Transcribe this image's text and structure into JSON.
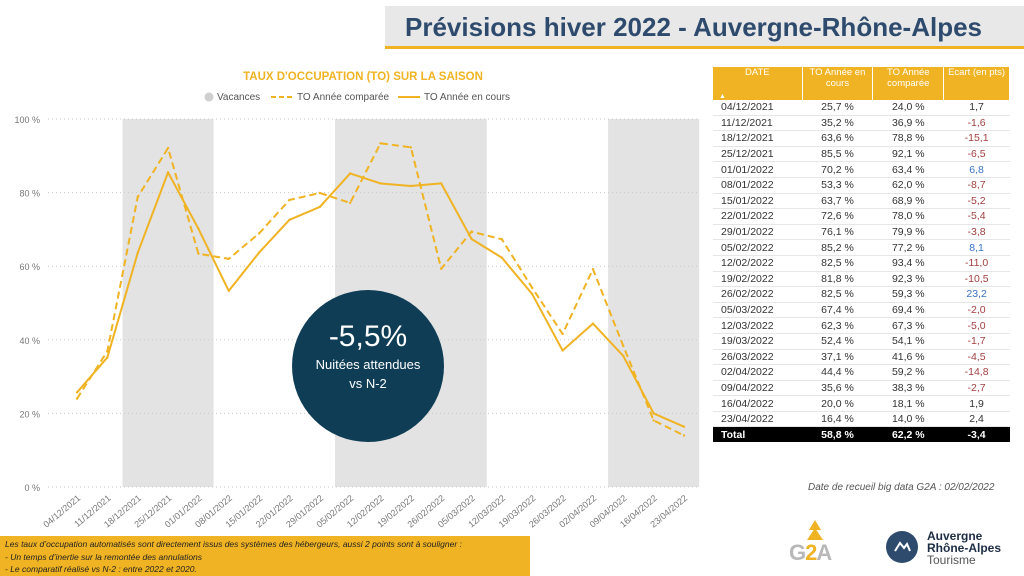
{
  "page_title": "Prévisions hiver 2022 - Auvergne-Rhône-Alpes",
  "chart_data": {
    "type": "line",
    "title": "TAUX D'OCCUPATION (TO) SUR LA SAISON",
    "categories": [
      "04/12/2021",
      "11/12/2021",
      "18/12/2021",
      "25/12/2021",
      "01/01/2022",
      "08/01/2022",
      "15/01/2022",
      "22/01/2022",
      "29/01/2022",
      "05/02/2022",
      "12/02/2022",
      "19/02/2022",
      "26/02/2022",
      "05/03/2022",
      "12/03/2022",
      "19/03/2022",
      "26/03/2022",
      "02/04/2022",
      "09/04/2022",
      "16/04/2022",
      "23/04/2022"
    ],
    "series": [
      {
        "name": "TO Année en cours",
        "style": "solid",
        "values": [
          25.7,
          35.2,
          63.6,
          85.5,
          70.2,
          53.3,
          63.7,
          72.6,
          76.1,
          85.2,
          82.5,
          81.8,
          82.5,
          67.4,
          62.3,
          52.4,
          37.1,
          44.4,
          35.6,
          20.0,
          16.4
        ]
      },
      {
        "name": "TO Année comparée",
        "style": "dashed",
        "values": [
          24.0,
          36.9,
          78.8,
          92.1,
          63.4,
          62.0,
          68.9,
          78.0,
          79.9,
          77.2,
          93.4,
          92.3,
          59.3,
          69.4,
          67.3,
          54.1,
          41.6,
          59.2,
          38.3,
          18.1,
          14.0
        ]
      }
    ],
    "legend": [
      "Vacances",
      "TO Année comparée",
      "TO Année en cours"
    ],
    "legend_position": "top",
    "vacation_periods": [
      [
        "18/12/2021",
        "01/01/2022"
      ],
      [
        "05/02/2022",
        "05/03/2022"
      ],
      [
        "09/04/2022",
        "23/04/2022"
      ]
    ],
    "y_ticks": [
      "0 %",
      "20 %",
      "40 %",
      "60 %",
      "80 %",
      "100 %"
    ],
    "ylim": [
      0,
      100
    ],
    "line_color": "#f0b323",
    "vacation_color": "#e3e3e3"
  },
  "callout": {
    "value": "-5,5%",
    "line1": "Nuitées attendues",
    "line2": "vs N-2"
  },
  "table": {
    "headers": [
      "DATE",
      "TO Année en cours",
      "TO Année comparée",
      "Ecart (en pts)"
    ],
    "sort_indicator": "▲",
    "rows": [
      [
        "04/12/2021",
        "25,7 %",
        "24,0 %",
        "1,7"
      ],
      [
        "11/12/2021",
        "35,2 %",
        "36,9 %",
        "-1,6"
      ],
      [
        "18/12/2021",
        "63,6 %",
        "78,8 %",
        "-15,1"
      ],
      [
        "25/12/2021",
        "85,5 %",
        "92,1 %",
        "-6,5"
      ],
      [
        "01/01/2022",
        "70,2 %",
        "63,4 %",
        "6,8"
      ],
      [
        "08/01/2022",
        "53,3 %",
        "62,0 %",
        "-8,7"
      ],
      [
        "15/01/2022",
        "63,7 %",
        "68,9 %",
        "-5,2"
      ],
      [
        "22/01/2022",
        "72,6 %",
        "78,0 %",
        "-5,4"
      ],
      [
        "29/01/2022",
        "76,1 %",
        "79,9 %",
        "-3,8"
      ],
      [
        "05/02/2022",
        "85,2 %",
        "77,2 %",
        "8,1"
      ],
      [
        "12/02/2022",
        "82,5 %",
        "93,4 %",
        "-11,0"
      ],
      [
        "19/02/2022",
        "81,8 %",
        "92,3 %",
        "-10,5"
      ],
      [
        "26/02/2022",
        "82,5 %",
        "59,3 %",
        "23,2"
      ],
      [
        "05/03/2022",
        "67,4 %",
        "69,4 %",
        "-2,0"
      ],
      [
        "12/03/2022",
        "62,3 %",
        "67,3 %",
        "-5,0"
      ],
      [
        "19/03/2022",
        "52,4 %",
        "54,1 %",
        "-1,7"
      ],
      [
        "26/03/2022",
        "37,1 %",
        "41,6 %",
        "-4,5"
      ],
      [
        "02/04/2022",
        "44,4 %",
        "59,2 %",
        "-14,8"
      ],
      [
        "09/04/2022",
        "35,6 %",
        "38,3 %",
        "-2,7"
      ],
      [
        "16/04/2022",
        "20,0 %",
        "18,1 %",
        "1,9"
      ],
      [
        "23/04/2022",
        "16,4 %",
        "14,0 %",
        "2,4"
      ]
    ],
    "total": [
      "Total",
      "58,8 %",
      "62,2 %",
      "-3,4"
    ]
  },
  "collection_note": "Date de recueil big data G2A : 02/02/2022",
  "footnote": {
    "line1": "Les taux d’occupation  automatisés  sont  directement  issus des systèmes des hébergeurs, aussi 2 points sont à souligner :",
    "line2": "-     Un temps d’inertie sur la remontée des annulations",
    "line3": "-     Le comparatif réalisé vs N-2 : entre 2022 et 2020."
  },
  "logos": {
    "g2a_prefix": "G",
    "g2a_highlight": "2",
    "g2a_suffix": "A",
    "ara_line1": "Auvergne",
    "ara_line2": "Rhône-Alpes",
    "ara_line3": "Tourisme"
  }
}
